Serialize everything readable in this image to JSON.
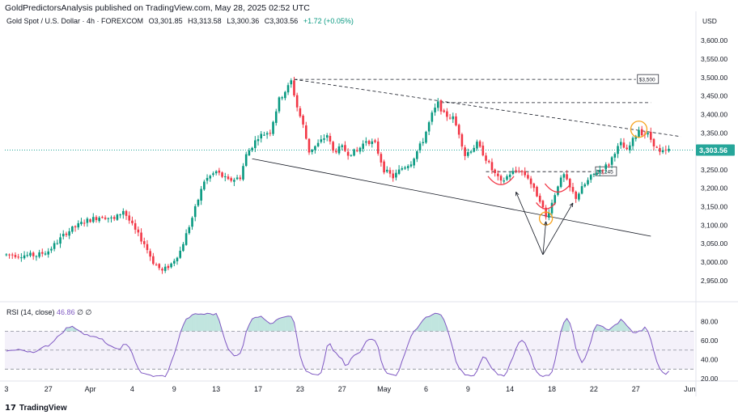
{
  "header": {
    "published": "GoldPredictorsAnalysis published on TradingView.com, May 28, 2025 02:52 UTC"
  },
  "legend": {
    "symbol": "Gold Spot / U.S. Dollar · 4h · FOREXCOM",
    "open": "O3,301.85",
    "high": "H3,313.58",
    "low": "L3,300.36",
    "close": "C3,303.56",
    "change": "+1.72 (+0.05%)"
  },
  "rsi_legend": {
    "label": "RSI (14, close)",
    "value": "46.86",
    "extra1": "∅",
    "extra2": "∅"
  },
  "footer": {
    "brand": "TradingView",
    "logo": "17"
  },
  "colors": {
    "up": "#089981",
    "down": "#f23645",
    "rsi": "#7e57c2",
    "price_label": "#26a69a",
    "marker_orange": "#f7a21b",
    "marker_red": "#f23645"
  },
  "chart_data": [
    {
      "type": "candlestick",
      "title": "Gold Spot / U.S. Dollar · 4h · FOREXCOM",
      "currency_label": "USD",
      "ylim": [
        2910,
        3640
      ],
      "y_ticks": [
        "3,600.00",
        "3,550.00",
        "3,500.00",
        "3,450.00",
        "3,400.00",
        "3,350.00",
        "3,300.00",
        "3,250.00",
        "3,200.00",
        "3,150.00",
        "3,100.00",
        "3,050.00",
        "3,000.00",
        "2,950.00"
      ],
      "y_tick_values": [
        3600,
        3550,
        3500,
        3450,
        3400,
        3350,
        3300,
        3250,
        3200,
        3150,
        3100,
        3050,
        3000,
        2950
      ],
      "current_price": 3303.56,
      "current_price_label": "3,303.56",
      "x_ticks": [
        {
          "label": "3",
          "i": 0
        },
        {
          "label": "27",
          "i": 14
        },
        {
          "label": "Apr",
          "i": 28
        },
        {
          "label": "4",
          "i": 42
        },
        {
          "label": "9",
          "i": 56
        },
        {
          "label": "13",
          "i": 70
        },
        {
          "label": "17",
          "i": 84
        },
        {
          "label": "23",
          "i": 98
        },
        {
          "label": "27",
          "i": 112
        },
        {
          "label": "May",
          "i": 126
        },
        {
          "label": "6",
          "i": 140
        },
        {
          "label": "9",
          "i": 154
        },
        {
          "label": "14",
          "i": 168
        },
        {
          "label": "18",
          "i": 182
        },
        {
          "label": "22",
          "i": 196
        },
        {
          "label": "27",
          "i": 210
        },
        {
          "label": "Jun",
          "i": 228
        }
      ],
      "num_slots": 230,
      "price_path": [
        [
          0,
          3020
        ],
        [
          10,
          3018
        ],
        [
          14,
          3030
        ],
        [
          20,
          3080
        ],
        [
          26,
          3110
        ],
        [
          32,
          3125
        ],
        [
          36,
          3115
        ],
        [
          39,
          3140
        ],
        [
          43,
          3085
        ],
        [
          46,
          3050
        ],
        [
          49,
          3000
        ],
        [
          52,
          2975
        ],
        [
          55,
          2995
        ],
        [
          58,
          3030
        ],
        [
          62,
          3120
        ],
        [
          66,
          3220
        ],
        [
          70,
          3245
        ],
        [
          74,
          3220
        ],
        [
          78,
          3230
        ],
        [
          80,
          3290
        ],
        [
          84,
          3340
        ],
        [
          88,
          3355
        ],
        [
          91,
          3440
        ],
        [
          94,
          3475
        ],
        [
          95,
          3490
        ],
        [
          97,
          3420
        ],
        [
          99,
          3370
        ],
        [
          101,
          3300
        ],
        [
          104,
          3320
        ],
        [
          107,
          3345
        ],
        [
          109,
          3300
        ],
        [
          112,
          3310
        ],
        [
          114,
          3295
        ],
        [
          117,
          3300
        ],
        [
          120,
          3330
        ],
        [
          123,
          3320
        ],
        [
          126,
          3250
        ],
        [
          129,
          3230
        ],
        [
          132,
          3255
        ],
        [
          135,
          3270
        ],
        [
          139,
          3330
        ],
        [
          142,
          3400
        ],
        [
          144,
          3430
        ],
        [
          146,
          3400
        ],
        [
          149,
          3390
        ],
        [
          151,
          3350
        ],
        [
          153,
          3290
        ],
        [
          157,
          3320
        ],
        [
          159,
          3295
        ],
        [
          162,
          3250
        ],
        [
          165,
          3215
        ],
        [
          168,
          3240
        ],
        [
          171,
          3250
        ],
        [
          174,
          3230
        ],
        [
          176,
          3195
        ],
        [
          178,
          3170
        ],
        [
          180,
          3120
        ],
        [
          182,
          3160
        ],
        [
          184,
          3210
        ],
        [
          186,
          3235
        ],
        [
          188,
          3200
        ],
        [
          190,
          3175
        ],
        [
          192,
          3200
        ],
        [
          195,
          3230
        ],
        [
          197,
          3245
        ],
        [
          199,
          3255
        ],
        [
          201,
          3265
        ],
        [
          203,
          3300
        ],
        [
          205,
          3320
        ],
        [
          207,
          3300
        ],
        [
          209,
          3330
        ],
        [
          211,
          3360
        ],
        [
          212,
          3350
        ],
        [
          214,
          3345
        ],
        [
          216,
          3320
        ],
        [
          218,
          3295
        ],
        [
          220,
          3300
        ],
        [
          221,
          3303.56
        ]
      ],
      "annotations": [
        {
          "type": "hline",
          "label": "$3,500",
          "value": 3495,
          "from_i": 96,
          "to_i": 210
        },
        {
          "type": "hline",
          "label": "",
          "value": 3432,
          "from_i": 145,
          "to_i": 215
        },
        {
          "type": "hline",
          "label": "$3,245",
          "value": 3245,
          "from_i": 160,
          "to_i": 196
        },
        {
          "type": "trendline",
          "from": [
            96,
            3495
          ],
          "to": [
            225,
            3340
          ]
        },
        {
          "type": "trendline",
          "from": [
            82,
            3280
          ],
          "to": [
            215,
            3070
          ]
        }
      ],
      "price_labels": [
        "$3,500",
        "$3,245"
      ]
    },
    {
      "type": "line",
      "title": "RSI (14, close)",
      "series": [
        {
          "name": "RSI",
          "last_value": 46.86
        }
      ],
      "ylim": [
        20,
        95
      ],
      "y_ticks": [
        "80.00",
        "60.00",
        "40.00",
        "20.00"
      ],
      "y_tick_values": [
        80,
        60,
        40,
        20
      ],
      "band": [
        30,
        70
      ],
      "mid": 50
    }
  ]
}
